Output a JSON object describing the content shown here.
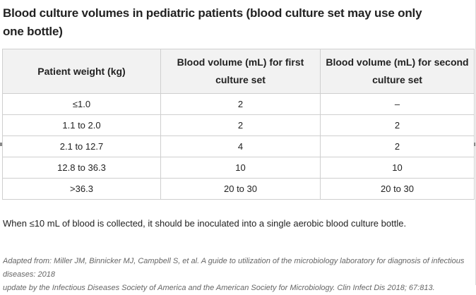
{
  "document": {
    "title": "Blood culture volumes in pediatric patients (blood culture set may use only one bottle)",
    "table": {
      "headers": [
        "Patient weight (kg)",
        "Blood volume (mL) for first culture set",
        "Blood volume (mL) for second culture set"
      ],
      "rows": [
        [
          "≤1.0",
          "2",
          "–"
        ],
        [
          "1.1 to 2.0",
          "2",
          "2"
        ],
        [
          "2.1 to 12.7",
          "4",
          "2"
        ],
        [
          "12.8 to 36.3",
          "10",
          "10"
        ],
        [
          ">36.3",
          "20 to 30",
          "20 to 30"
        ]
      ]
    },
    "note": "When ≤10 mL of blood is collected, it should be inoculated into a single aerobic blood culture bottle.",
    "source": "Adapted from: Miller JM, Binnicker MJ, Campbell S, et al. A guide to utilization of the microbiology laboratory for diagnosis of infectious diseases: 2018\nupdate by the Infectious Diseases Society of America and the American Society for Microbiology. Clin Infect Dis 2018; 67:813."
  }
}
